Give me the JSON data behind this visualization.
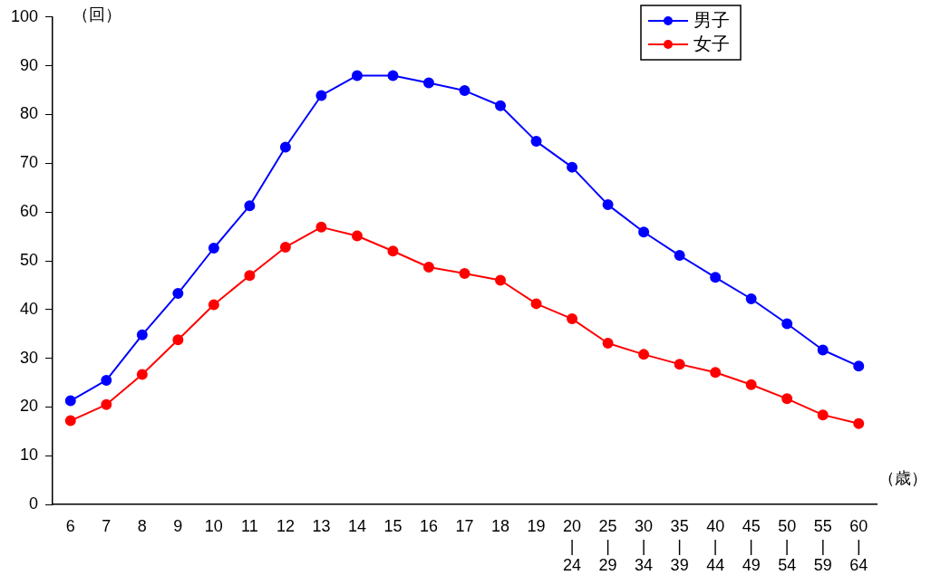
{
  "chart_data": {
    "type": "line",
    "categories": [
      "6",
      "7",
      "8",
      "9",
      "10",
      "11",
      "12",
      "13",
      "14",
      "15",
      "16",
      "17",
      "18",
      "19",
      "20\n|\n24",
      "25\n|\n29",
      "30\n|\n34",
      "35\n|\n39",
      "40\n|\n44",
      "45\n|\n49",
      "50\n|\n54",
      "55\n|\n59",
      "60\n|\n64"
    ],
    "series": [
      {
        "name": "男子",
        "color": "#0000ff",
        "marker": "circle",
        "values": [
          21.3,
          25.5,
          34.8,
          43.3,
          52.6,
          61.3,
          73.3,
          83.9,
          88.0,
          88.0,
          86.5,
          84.9,
          81.8,
          74.5,
          69.2,
          61.5,
          55.9,
          51.1,
          46.6,
          42.2,
          37.1,
          31.7,
          28.4
        ]
      },
      {
        "name": "女子",
        "color": "#ff0000",
        "marker": "circle",
        "values": [
          17.2,
          20.5,
          26.7,
          33.8,
          41.0,
          47.0,
          52.8,
          56.9,
          55.1,
          52.0,
          48.7,
          47.4,
          46.0,
          41.2,
          38.1,
          33.1,
          30.8,
          28.8,
          27.1,
          24.6,
          21.7,
          18.4,
          16.6
        ]
      }
    ],
    "ylim": [
      0,
      100
    ],
    "yticks": [
      0,
      10,
      20,
      30,
      40,
      50,
      60,
      70,
      80,
      90,
      100
    ],
    "grid": false,
    "legend": "top right",
    "line_style": "solid",
    "annotations": [
      "（回）",
      "（歳）"
    ]
  }
}
